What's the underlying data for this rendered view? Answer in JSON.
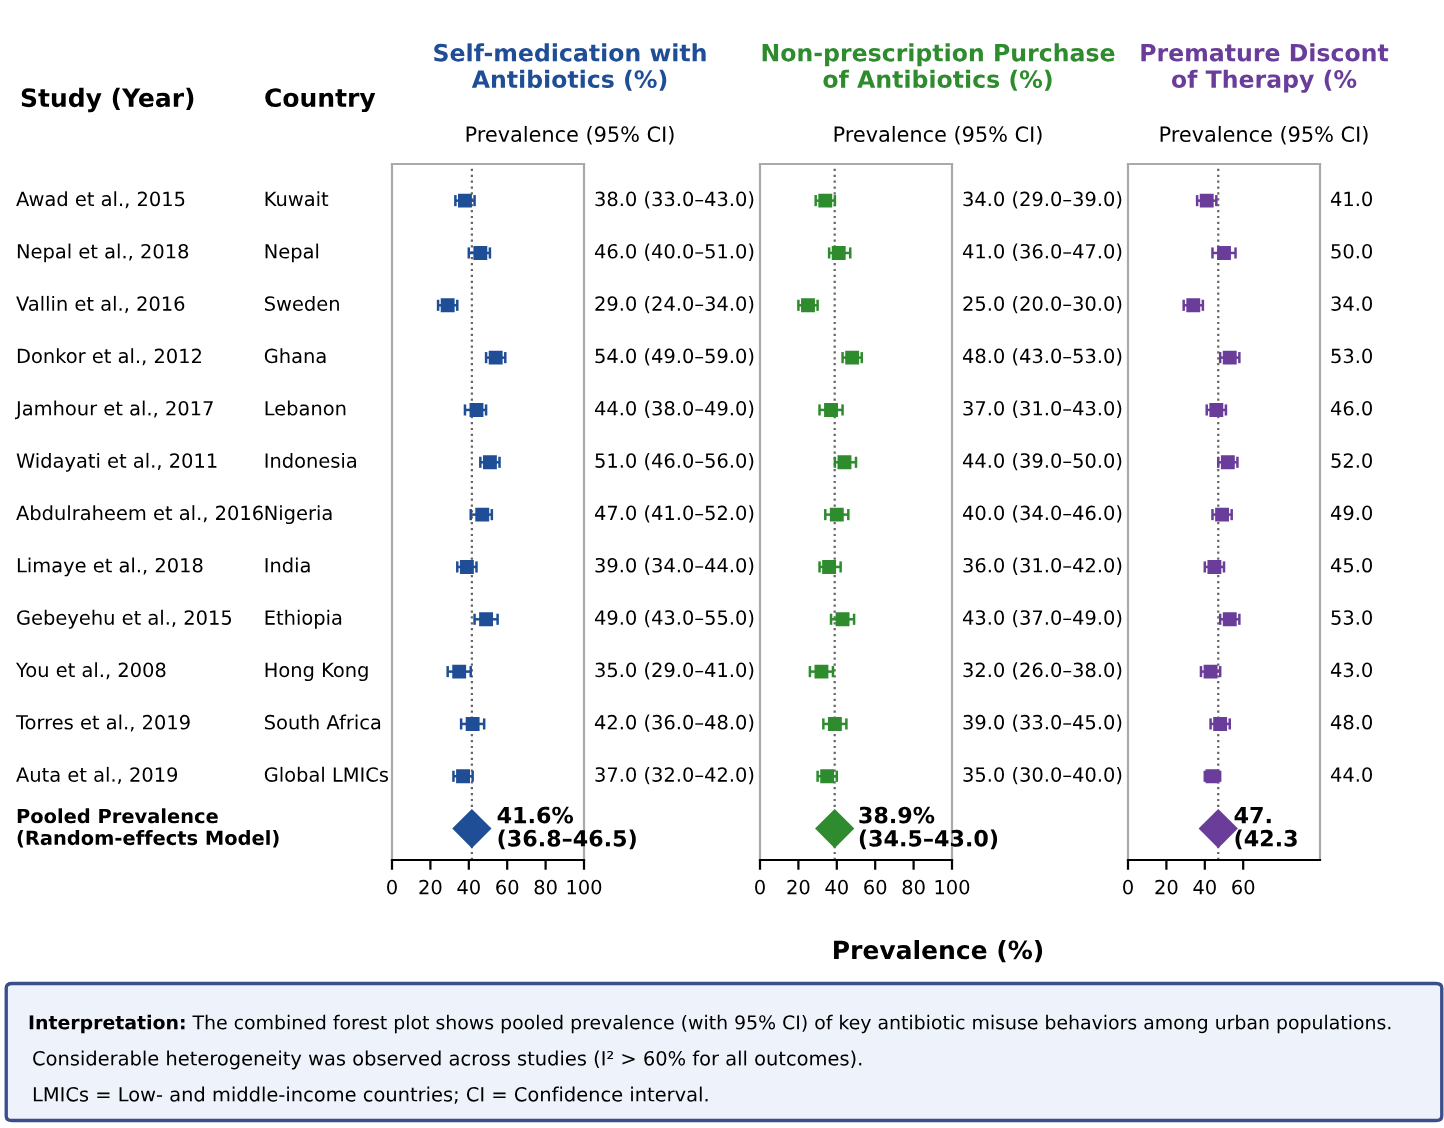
{
  "chart_data": [
    {
      "type": "other",
      "title": "Country",
      "categories": [
        "Kuwait",
        "Nepal",
        "Sweden",
        "Ghana",
        "Lebanon",
        "Indonesia",
        "Nigeria",
        "India",
        "Ethiopia",
        "Hong Kong",
        "South Africa",
        "Global LMICs",
        null
      ],
      "annotations": [
        "Interpretation:",
        "The combined forest plot shows pooled prevalence (with 95% CI) of key antibiotic misuse behaviors among urban populations.",
        "Considerable heterogeneity was observed across studies (I² > 60% for all outcomes).",
        "LMICs = Low- and middle-income countries; CI = Confidence interval."
      ]
    },
    {
      "type": "scatter",
      "orientation": "horizontal",
      "title": "Self-medication with\nAntibiotics (%)",
      "subtitle": "Prevalence (95% CI)",
      "ylabel": "Study (Year)",
      "categories": [
        "Awad et al., 2015",
        "Nepal et al., 2018",
        "Vallin et al., 2016",
        "Donkor et al., 2012",
        "Jamhour et al., 2017",
        "Widayati et al., 2011",
        "Abdulraheem et al., 2016",
        "Limaye et al., 2018",
        "Gebeyehu et al., 2015",
        "You et al., 2008",
        "Torres et al., 2019",
        "Auta et al., 2019",
        "Pooled Prevalence\n(Random-effects Model)"
      ],
      "series": [
        {
          "color": "#1f4e96",
          "marker": "square",
          "values": [
            38.0,
            46.0,
            29.0,
            54.0,
            44.0,
            51.0,
            47.0,
            39.0,
            49.0,
            35.0,
            42.0,
            37.0,
            null
          ],
          "errors": [
            [
              33.0,
              43.0
            ],
            [
              40.0,
              51.0
            ],
            [
              24.0,
              34.0
            ],
            [
              49.0,
              59.0
            ],
            [
              38.0,
              49.0
            ],
            [
              46.0,
              56.0
            ],
            [
              41.0,
              52.0
            ],
            [
              34.0,
              44.0
            ],
            [
              43.0,
              55.0
            ],
            [
              29.0,
              41.0
            ],
            [
              36.0,
              48.0
            ],
            [
              32.0,
              42.0
            ],
            null
          ],
          "value_labels": [
            "38.0 (33.0–43.0)",
            "46.0 (40.0–51.0)",
            "29.0 (24.0–34.0)",
            "54.0 (49.0–59.0)",
            "44.0 (38.0–49.0)",
            "51.0 (46.0–56.0)",
            "47.0 (41.0–52.0)",
            "39.0 (34.0–44.0)",
            "49.0 (43.0–55.0)",
            "35.0 (29.0–41.0)",
            "42.0 (36.0–48.0)",
            "37.0 (32.0–42.0)",
            null
          ]
        },
        {
          "color": "#1f4e96",
          "marker": "diamond",
          "values": [
            null,
            null,
            null,
            null,
            null,
            null,
            null,
            null,
            null,
            null,
            null,
            null,
            41.6
          ],
          "errors": [
            null,
            null,
            null,
            null,
            null,
            null,
            null,
            null,
            null,
            null,
            null,
            null,
            [
              36.8,
              46.5
            ]
          ],
          "value_labels": [
            null,
            null,
            null,
            null,
            null,
            null,
            null,
            null,
            null,
            null,
            null,
            null,
            "41.6%\n(36.8–46.5)"
          ]
        }
      ],
      "xlim": [
        0,
        100
      ],
      "xticks": [
        0,
        20,
        40,
        60,
        80,
        100
      ],
      "ref_lines": [
        {
          "axis": "x",
          "value": 41.6,
          "line_style": "dotted"
        }
      ]
    },
    {
      "type": "scatter",
      "orientation": "horizontal",
      "title": "Non-prescription Purchase\nof Antibiotics (%)",
      "subtitle": "Prevalence (95% CI)",
      "xlabel": "Prevalence (%)",
      "tick_labels": "x",
      "categories": [
        null,
        null,
        null,
        null,
        null,
        null,
        null,
        null,
        null,
        null,
        null,
        null,
        null
      ],
      "series": [
        {
          "color": "#2e8b2e",
          "marker": "square",
          "values": [
            34.0,
            41.0,
            25.0,
            48.0,
            37.0,
            44.0,
            40.0,
            36.0,
            43.0,
            32.0,
            39.0,
            35.0,
            null
          ],
          "errors": [
            [
              29.0,
              39.0
            ],
            [
              36.0,
              47.0
            ],
            [
              20.0,
              30.0
            ],
            [
              43.0,
              53.0
            ],
            [
              31.0,
              43.0
            ],
            [
              39.0,
              50.0
            ],
            [
              34.0,
              46.0
            ],
            [
              31.0,
              42.0
            ],
            [
              37.0,
              49.0
            ],
            [
              26.0,
              38.0
            ],
            [
              33.0,
              45.0
            ],
            [
              30.0,
              40.0
            ],
            null
          ],
          "value_labels": [
            "34.0 (29.0–39.0)",
            "41.0 (36.0–47.0)",
            "25.0 (20.0–30.0)",
            "48.0 (43.0–53.0)",
            "37.0 (31.0–43.0)",
            "44.0 (39.0–50.0)",
            "40.0 (34.0–46.0)",
            "36.0 (31.0–42.0)",
            "43.0 (37.0–49.0)",
            "32.0 (26.0–38.0)",
            "39.0 (33.0–45.0)",
            "35.0 (30.0–40.0)",
            null
          ]
        },
        {
          "color": "#2e8b2e",
          "marker": "diamond",
          "values": [
            null,
            null,
            null,
            null,
            null,
            null,
            null,
            null,
            null,
            null,
            null,
            null,
            38.9
          ],
          "errors": [
            null,
            null,
            null,
            null,
            null,
            null,
            null,
            null,
            null,
            null,
            null,
            null,
            [
              34.5,
              43.0
            ]
          ],
          "value_labels": [
            null,
            null,
            null,
            null,
            null,
            null,
            null,
            null,
            null,
            null,
            null,
            null,
            "38.9%\n(34.5–43.0)"
          ]
        }
      ],
      "xlim": [
        0,
        100
      ],
      "xticks": [
        0,
        20,
        40,
        60,
        80,
        100
      ],
      "ref_lines": [
        {
          "axis": "x",
          "value": 38.9,
          "line_style": "dotted"
        }
      ]
    },
    {
      "type": "scatter",
      "orientation": "horizontal",
      "title": "Premature Discont\nof Therapy (%",
      "subtitle": "Prevalence (95% CI)",
      "tick_labels": "x",
      "categories": [
        null,
        null,
        null,
        null,
        null,
        null,
        null,
        null,
        null,
        null,
        null,
        null,
        null
      ],
      "series": [
        {
          "color": "#6a3d9a",
          "marker": "square",
          "values": [
            41.0,
            50.0,
            34.0,
            53.0,
            46.0,
            52.0,
            49.0,
            45.0,
            53.0,
            43.0,
            48.0,
            44.0,
            null
          ],
          "errors": [
            [
              36,
              46
            ],
            [
              44,
              56
            ],
            [
              29,
              39
            ],
            [
              48,
              58
            ],
            [
              41,
              51
            ],
            [
              47,
              57
            ],
            [
              44,
              54
            ],
            [
              40,
              50
            ],
            [
              48,
              58
            ],
            [
              38,
              48
            ],
            [
              43,
              53
            ],
            [
              40,
              48
            ],
            null
          ],
          "value_labels": [
            "41.0",
            "50.0",
            "34.0",
            "53.0",
            "46.0",
            "52.0",
            "49.0",
            "45.0",
            "53.0",
            "43.0",
            "48.0",
            "44.0",
            null
          ]
        },
        {
          "color": "#6a3d9a",
          "marker": "diamond",
          "values": [
            null,
            null,
            null,
            null,
            null,
            null,
            null,
            null,
            null,
            null,
            null,
            null,
            47
          ],
          "value_labels": [
            null,
            null,
            null,
            null,
            null,
            null,
            null,
            null,
            null,
            null,
            null,
            null,
            "47.\n(42.3"
          ]
        }
      ],
      "xlim": [
        0,
        100
      ],
      "xticks": [
        0,
        20,
        40,
        60
      ],
      "ref_lines": [
        {
          "axis": "x",
          "value": 47,
          "line_style": "dotted"
        }
      ]
    }
  ]
}
